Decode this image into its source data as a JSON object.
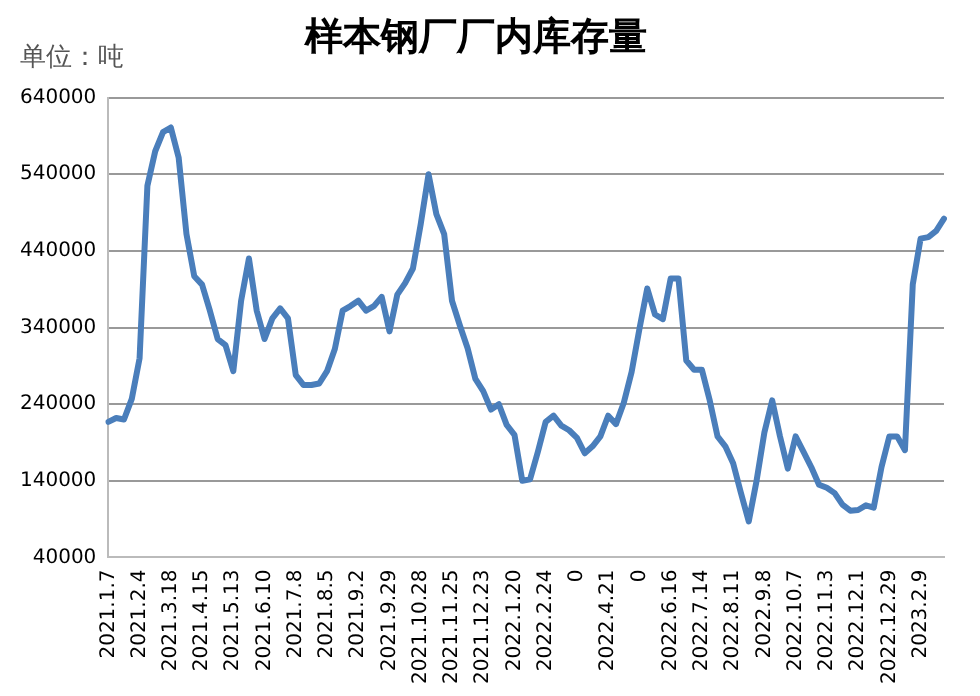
{
  "chart_data": {
    "type": "line",
    "title": "样本钢厂厂内库存量",
    "annotations": [
      "单位：吨"
    ],
    "categories": [
      "2021.1.7",
      null,
      null,
      null,
      "2021.2.4",
      null,
      null,
      null,
      "2021.3.18",
      null,
      null,
      null,
      "2021.4.15",
      null,
      null,
      null,
      "2021.5.13",
      null,
      null,
      null,
      "2021.6.10",
      null,
      null,
      null,
      "2021.7.8",
      null,
      null,
      null,
      "2021.8.5",
      null,
      null,
      null,
      "2021.9.2",
      null,
      null,
      null,
      "2021.9.29",
      null,
      null,
      null,
      "2021.10.28",
      null,
      null,
      null,
      "2021.11.25",
      null,
      null,
      null,
      "2021.12.23",
      null,
      null,
      null,
      "2022.1.20",
      null,
      null,
      null,
      "2022.2.24",
      null,
      null,
      null,
      "0",
      null,
      null,
      null,
      "2022.4.21",
      null,
      null,
      null,
      "0",
      null,
      null,
      null,
      "2022.6.16",
      null,
      null,
      null,
      "2022.7.14",
      null,
      null,
      null,
      "2022.8.11",
      null,
      null,
      null,
      "2022.9.8",
      null,
      null,
      null,
      "2022.10.7",
      null,
      null,
      null,
      "2022.11.3",
      null,
      null,
      null,
      "2022.12.1",
      null,
      null,
      null,
      "2022.12.29",
      null,
      null,
      null,
      "2023.2.9",
      null,
      null,
      null
    ],
    "series": [
      {
        "color": "#4a7ebb",
        "values": [
          217000,
          222000,
          220000,
          247000,
          300000,
          525000,
          570000,
          595000,
          601000,
          562000,
          462000,
          407000,
          396000,
          362000,
          325000,
          317000,
          283000,
          375000,
          430000,
          362000,
          325000,
          352000,
          365000,
          352000,
          278000,
          265000,
          265000,
          267000,
          283000,
          312000,
          362000,
          368000,
          375000,
          362000,
          368000,
          380000,
          335000,
          383000,
          398000,
          417000,
          475000,
          540000,
          488000,
          462000,
          375000,
          343000,
          313000,
          273000,
          257000,
          233000,
          240000,
          213000,
          200000,
          140000,
          142000,
          178000,
          217000,
          225000,
          212000,
          206000,
          196000,
          176000,
          185000,
          198000,
          225000,
          214000,
          242000,
          282000,
          338000,
          391000,
          357000,
          351000,
          404000,
          404000,
          297000,
          285000,
          285000,
          245000,
          198000,
          185000,
          163000,
          124000,
          87000,
          140000,
          203000,
          245000,
          198000,
          156000,
          198000,
          178000,
          158000,
          135000,
          131000,
          124000,
          109000,
          101000,
          102000,
          108000,
          105000,
          158000,
          198000,
          198000,
          180000,
          396000,
          456000,
          458000,
          466000,
          482000
        ]
      }
    ],
    "ylim": [
      40000,
      640000
    ],
    "yticks": [
      40000,
      140000,
      240000,
      340000,
      440000,
      540000,
      640000
    ],
    "grid": "y",
    "legend": false,
    "marker": "none",
    "line_style": "solid"
  }
}
